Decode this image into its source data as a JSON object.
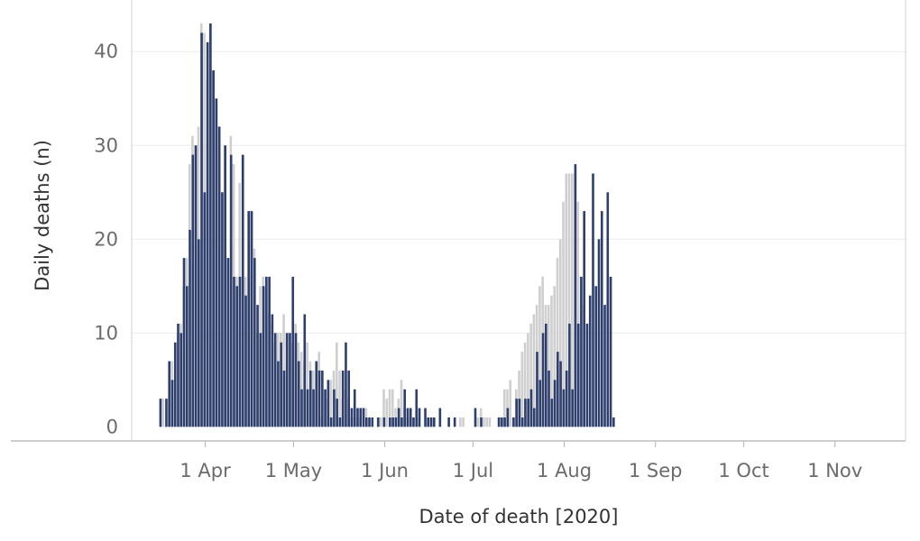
{
  "chart_data": {
    "type": "bar",
    "xlabel": "Date of death [2020]",
    "ylabel": "Daily deaths (n)",
    "x_start": "2020-03-17",
    "x_end": "2020-11-15",
    "xlim": [
      "2020-03-07",
      "2020-11-25"
    ],
    "ylim": [
      -1.5,
      45.5
    ],
    "y_ticks": [
      0,
      10,
      20,
      30,
      40
    ],
    "x_ticks": [
      {
        "date": "2020-04-01",
        "label": "1 Apr"
      },
      {
        "date": "2020-05-01",
        "label": "1 May"
      },
      {
        "date": "2020-06-01",
        "label": "1 Jun"
      },
      {
        "date": "2020-07-01",
        "label": "1 Jul"
      },
      {
        "date": "2020-08-01",
        "label": "1 Aug"
      },
      {
        "date": "2020-09-01",
        "label": "1 Sep"
      },
      {
        "date": "2020-10-01",
        "label": "1 Oct"
      },
      {
        "date": "2020-11-01",
        "label": "1 Nov"
      }
    ],
    "grid": true,
    "legend": "none",
    "series": [
      {
        "color": "#2e3f6e",
        "values": [
          3,
          0,
          3,
          7,
          5,
          9,
          11,
          10,
          18,
          15,
          21,
          29,
          30,
          20,
          42,
          25,
          41,
          43,
          38,
          35,
          32,
          25,
          30,
          18,
          29,
          16,
          15,
          16,
          29,
          14,
          23,
          23,
          18,
          13,
          10,
          15,
          16,
          16,
          12,
          10,
          7,
          9,
          6,
          10,
          10,
          16,
          10,
          7,
          4,
          12,
          4,
          6,
          4,
          7,
          6,
          6,
          4,
          5,
          1,
          4,
          3,
          1,
          6,
          9,
          6,
          2,
          4,
          2,
          2,
          2,
          1,
          1,
          1,
          0,
          1,
          0,
          1,
          0,
          1,
          1,
          1,
          2,
          1,
          4,
          2,
          2,
          1,
          4,
          2,
          0,
          2,
          1,
          1,
          1,
          0,
          2,
          0,
          0,
          1,
          0,
          1,
          0,
          0,
          0,
          0,
          0,
          0,
          2,
          0,
          1,
          0,
          0,
          0,
          0,
          0,
          1,
          1,
          1,
          2,
          0,
          1,
          3,
          3,
          1,
          3,
          3,
          4,
          2,
          8,
          5,
          10,
          11,
          6,
          3,
          5,
          8,
          7,
          4,
          6,
          11,
          4,
          28,
          11,
          16,
          23,
          11,
          14,
          27,
          15,
          20,
          23,
          13,
          25,
          16,
          1
        ],
        "shadow_color": "#cfcfcf",
        "shadow_values": [
          3,
          0,
          3,
          7,
          5,
          10,
          11,
          15,
          18,
          28,
          31,
          30,
          32,
          43,
          42,
          37,
          43,
          38,
          35,
          32,
          25,
          30,
          18,
          31,
          28,
          16,
          26,
          29,
          16,
          23,
          23,
          19,
          10,
          15,
          16,
          16,
          12,
          11,
          9,
          10,
          10,
          12,
          10,
          10,
          9,
          11,
          9,
          8,
          7,
          9,
          7,
          6,
          7,
          8,
          1,
          4,
          3,
          5,
          6,
          9,
          6,
          3,
          4,
          3,
          1,
          1,
          1,
          1,
          0,
          2,
          1,
          0,
          0,
          1,
          1,
          4,
          3,
          4,
          4,
          2,
          3,
          5,
          2,
          1,
          1,
          1,
          0,
          1,
          0,
          0,
          1,
          0,
          1,
          0,
          0,
          0,
          0,
          0,
          0,
          0,
          0,
          1,
          1,
          0,
          0,
          0,
          0,
          1,
          2,
          1,
          1,
          1,
          0,
          0,
          0,
          1,
          4,
          4,
          5,
          1,
          4,
          6,
          8,
          9,
          10,
          11,
          12,
          13,
          15,
          16,
          13,
          13,
          14,
          15,
          18,
          20,
          24,
          27,
          27,
          27,
          27,
          24,
          16,
          13,
          0
        ]
      }
    ]
  }
}
